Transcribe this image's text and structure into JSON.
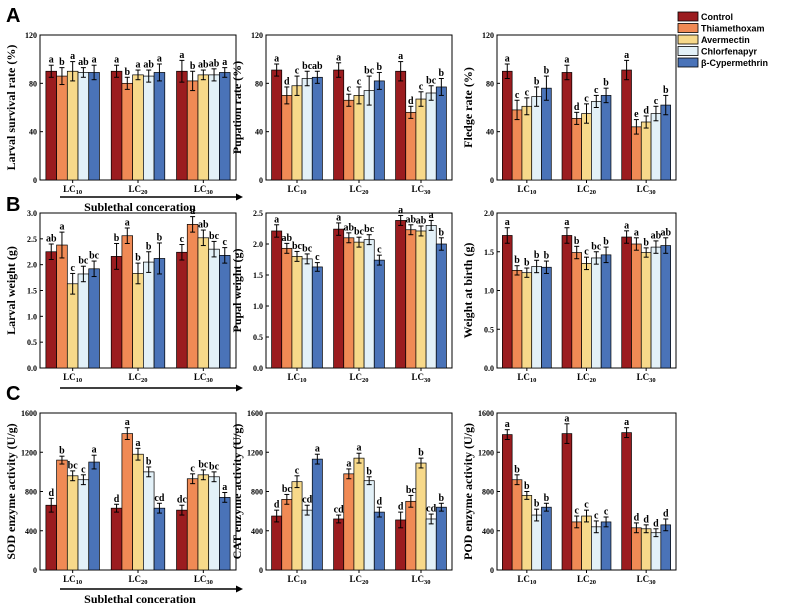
{
  "panel_letters": [
    "A",
    "B",
    "C"
  ],
  "legend": {
    "items": [
      {
        "name": "Control",
        "color": "#9b1c1f"
      },
      {
        "name": "Thiamethoxam",
        "color": "#f08a55"
      },
      {
        "name": "Avermectin",
        "color": "#f7d98a"
      },
      {
        "name": "Chlorfenapyr",
        "color": "#e3f1f8"
      },
      {
        "name": "β-Cypermethrin",
        "color": "#4a73b8"
      }
    ]
  },
  "arrow_label": "Sublethal conceration",
  "chart_data": [
    {
      "id": "larval-survival",
      "type": "bar",
      "ylabel": "Larval survival rate (%)",
      "ylim": [
        0,
        120
      ],
      "yticks": [
        0,
        40,
        80,
        120
      ],
      "categories": [
        "LC10",
        "LC20",
        "LC30"
      ],
      "series_names": [
        "Control",
        "Thiamethoxam",
        "Avermectin",
        "Chlorfenapyr",
        "β-Cypermethrin"
      ],
      "values": [
        [
          90,
          86,
          90,
          89,
          89
        ],
        [
          90,
          80,
          87,
          86,
          89
        ],
        [
          90,
          82,
          87,
          87,
          89
        ]
      ],
      "errors": [
        [
          5,
          7,
          8,
          4,
          6
        ],
        [
          5,
          5,
          4,
          5,
          7
        ],
        [
          9,
          8,
          4,
          5,
          4
        ]
      ],
      "letters": [
        [
          "a",
          "b",
          "a",
          "ab",
          "a"
        ],
        [
          "a",
          "b",
          "a",
          "ab",
          "a"
        ],
        [
          "a",
          "b",
          "ab",
          "ab",
          "a"
        ]
      ]
    },
    {
      "id": "pupation-rate",
      "type": "bar",
      "ylabel": "Pupation rate (%)",
      "ylim": [
        0,
        120
      ],
      "yticks": [
        0,
        40,
        80,
        120
      ],
      "categories": [
        "LC10",
        "LC20",
        "LC30"
      ],
      "series_names": [
        "Control",
        "Thiamethoxam",
        "Avermectin",
        "Chlorfenapyr",
        "β-Cypermethrin"
      ],
      "values": [
        [
          91,
          70,
          78,
          84,
          85
        ],
        [
          91,
          66,
          70,
          74,
          82
        ],
        [
          90,
          56,
          67,
          72,
          77
        ]
      ],
      "errors": [
        [
          5,
          7,
          8,
          6,
          5
        ],
        [
          6,
          5,
          7,
          12,
          7
        ],
        [
          8,
          5,
          6,
          6,
          7
        ]
      ],
      "letters": [
        [
          "a",
          "d",
          "c",
          "bc",
          "ab"
        ],
        [
          "a",
          "c",
          "c",
          "bc",
          "b"
        ],
        [
          "a",
          "d",
          "c",
          "bc",
          "b"
        ]
      ]
    },
    {
      "id": "fledge-rate",
      "type": "bar",
      "ylabel": "Fledge rate (%)",
      "ylim": [
        0,
        120
      ],
      "yticks": [
        0,
        40,
        80,
        120
      ],
      "categories": [
        "LC10",
        "LC20",
        "LC30"
      ],
      "series_names": [
        "Control",
        "Thiamethoxam",
        "Avermectin",
        "Chlorfenapyr",
        "β-Cypermethrin"
      ],
      "values": [
        [
          90,
          58,
          61,
          69,
          76
        ],
        [
          89,
          51,
          55,
          65,
          70
        ],
        [
          91,
          44,
          48,
          55,
          62
        ]
      ],
      "errors": [
        [
          6,
          8,
          7,
          8,
          10
        ],
        [
          6,
          5,
          8,
          5,
          6
        ],
        [
          8,
          6,
          5,
          6,
          8
        ]
      ],
      "letters": [
        [
          "a",
          "c",
          "c",
          "b",
          "b"
        ],
        [
          "a",
          "d",
          "c",
          "c",
          "b"
        ],
        [
          "a",
          "e",
          "d",
          "c",
          "b"
        ]
      ]
    },
    {
      "id": "larval-weight",
      "type": "bar",
      "ylabel": "Larval weight (g)",
      "ylim": [
        0,
        3.0
      ],
      "yticks": [
        0.0,
        0.5,
        1.0,
        1.5,
        2.0,
        2.5,
        3.0
      ],
      "categories": [
        "LC10",
        "LC20",
        "LC30"
      ],
      "series_names": [
        "Control",
        "Thiamethoxam",
        "Avermectin",
        "Chlorfenapyr",
        "β-Cypermethrin"
      ],
      "values": [
        [
          2.25,
          2.38,
          1.63,
          1.82,
          1.92
        ],
        [
          2.16,
          2.56,
          1.83,
          2.05,
          2.12
        ],
        [
          2.24,
          2.78,
          2.52,
          2.3,
          2.18
        ]
      ],
      "errors": [
        [
          0.15,
          0.25,
          0.2,
          0.15,
          0.15
        ],
        [
          0.25,
          0.15,
          0.2,
          0.2,
          0.3
        ],
        [
          0.15,
          0.15,
          0.15,
          0.15,
          0.15
        ]
      ],
      "letters": [
        [
          "ab",
          "a",
          "c",
          "bc",
          "bc"
        ],
        [
          "b",
          "a",
          "b",
          "b",
          "b"
        ],
        [
          "c",
          "a",
          "ab",
          "bc",
          "c"
        ]
      ]
    },
    {
      "id": "pupal-weight",
      "type": "bar",
      "ylabel": "Pupal weight (g)",
      "ylim": [
        0,
        2.5
      ],
      "yticks": [
        0.0,
        0.5,
        1.0,
        1.5,
        2.0,
        2.5
      ],
      "categories": [
        "LC10",
        "LC20",
        "LC30"
      ],
      "series_names": [
        "Control",
        "Thiamethoxam",
        "Avermectin",
        "Chlorfenapyr",
        "β-Cypermethrin"
      ],
      "values": [
        [
          2.21,
          1.93,
          1.8,
          1.76,
          1.63
        ],
        [
          2.24,
          2.1,
          2.03,
          2.07,
          1.74
        ],
        [
          2.38,
          2.23,
          2.21,
          2.3,
          2.0
        ]
      ],
      "errors": [
        [
          0.1,
          0.08,
          0.08,
          0.08,
          0.07
        ],
        [
          0.1,
          0.08,
          0.08,
          0.08,
          0.08
        ],
        [
          0.08,
          0.08,
          0.08,
          0.08,
          0.1
        ]
      ],
      "letters": [
        [
          "a",
          "ab",
          "bc",
          "bc",
          "c"
        ],
        [
          "a",
          "ab",
          "bc",
          "bc",
          "c"
        ],
        [
          "a",
          "ab",
          "ab",
          "a",
          "b"
        ]
      ]
    },
    {
      "id": "weight-at-birth",
      "type": "bar",
      "ylabel": "Weight at birth (g)",
      "ylim": [
        0,
        2.0
      ],
      "yticks": [
        0.0,
        0.5,
        1.0,
        1.5,
        2.0
      ],
      "categories": [
        "LC10",
        "LC20",
        "LC30"
      ],
      "series_names": [
        "Control",
        "Thiamethoxam",
        "Avermectin",
        "Chlorfenapyr",
        "β-Cypermethrin"
      ],
      "values": [
        [
          1.71,
          1.26,
          1.23,
          1.31,
          1.3
        ],
        [
          1.71,
          1.49,
          1.35,
          1.42,
          1.46
        ],
        [
          1.69,
          1.6,
          1.49,
          1.56,
          1.58
        ]
      ],
      "errors": [
        [
          0.1,
          0.06,
          0.06,
          0.08,
          0.08
        ],
        [
          0.1,
          0.08,
          0.08,
          0.08,
          0.1
        ],
        [
          0.08,
          0.08,
          0.06,
          0.08,
          0.1
        ]
      ],
      "letters": [
        [
          "a",
          "b",
          "b",
          "b",
          "b"
        ],
        [
          "a",
          "b",
          "c",
          "bc",
          "b"
        ],
        [
          "a",
          "a",
          "b",
          "ab",
          "ab"
        ]
      ]
    },
    {
      "id": "sod-activity",
      "type": "bar",
      "ylabel": "SOD enzyme activity (U/g)",
      "ylim": [
        0,
        1600
      ],
      "yticks": [
        0,
        400,
        800,
        1200,
        1600
      ],
      "categories": [
        "LC10",
        "LC20",
        "LC30"
      ],
      "series_names": [
        "Control",
        "Thiamethoxam",
        "Avermectin",
        "Chlorfenapyr",
        "β-Cypermethrin"
      ],
      "values": [
        [
          660,
          1120,
          960,
          920,
          1100
        ],
        [
          630,
          1390,
          1180,
          1000,
          630
        ],
        [
          610,
          930,
          970,
          950,
          740
        ]
      ],
      "errors": [
        [
          70,
          40,
          50,
          50,
          70
        ],
        [
          40,
          60,
          60,
          50,
          50
        ],
        [
          50,
          50,
          50,
          50,
          50
        ]
      ],
      "letters": [
        [
          "d",
          "b",
          "bc",
          "c",
          "a"
        ],
        [
          "d",
          "a",
          "a",
          "b",
          "cd"
        ],
        [
          "dc",
          "c",
          "bc",
          "bc",
          "a"
        ]
      ]
    },
    {
      "id": "cat-activity",
      "type": "bar",
      "ylabel": "CAT enzyme activity (U/g)",
      "ylim": [
        0,
        1600
      ],
      "yticks": [
        0,
        400,
        800,
        1200,
        1600
      ],
      "categories": [
        "LC10",
        "LC20",
        "LC30"
      ],
      "series_names": [
        "Control",
        "Thiamethoxam",
        "Avermectin",
        "Chlorfenapyr",
        "β-Cypermethrin"
      ],
      "values": [
        [
          550,
          720,
          900,
          610,
          1130
        ],
        [
          520,
          980,
          1140,
          910,
          590
        ],
        [
          510,
          700,
          1090,
          520,
          640
        ]
      ],
      "errors": [
        [
          60,
          50,
          60,
          50,
          50
        ],
        [
          40,
          50,
          50,
          40,
          50
        ],
        [
          80,
          60,
          50,
          50,
          40
        ]
      ],
      "letters": [
        [
          "d",
          "bc",
          "c",
          "cd",
          "a"
        ],
        [
          "cd",
          "a",
          "a",
          "b",
          "d"
        ],
        [
          "d",
          "bc",
          "b",
          "cd",
          "b"
        ]
      ]
    },
    {
      "id": "pod-activity",
      "type": "bar",
      "ylabel": "POD enzyme activity (U/g)",
      "ylim": [
        0,
        1600
      ],
      "yticks": [
        0,
        400,
        800,
        1200,
        1600
      ],
      "categories": [
        "LC10",
        "LC20",
        "LC30"
      ],
      "series_names": [
        "Control",
        "Thiamethoxam",
        "Avermectin",
        "Chlorfenapyr",
        "β-Cypermethrin"
      ],
      "values": [
        [
          1380,
          920,
          760,
          560,
          640
        ],
        [
          1390,
          490,
          550,
          440,
          490
        ],
        [
          1400,
          430,
          420,
          380,
          460
        ]
      ],
      "errors": [
        [
          50,
          50,
          40,
          60,
          40
        ],
        [
          100,
          60,
          60,
          60,
          50
        ],
        [
          50,
          50,
          40,
          40,
          60
        ]
      ],
      "letters": [
        [
          "a",
          "b",
          "b",
          "b",
          "b"
        ],
        [
          "a",
          "c",
          "c",
          "c",
          "c"
        ],
        [
          "a",
          "d",
          "d",
          "d",
          "d"
        ]
      ]
    }
  ]
}
